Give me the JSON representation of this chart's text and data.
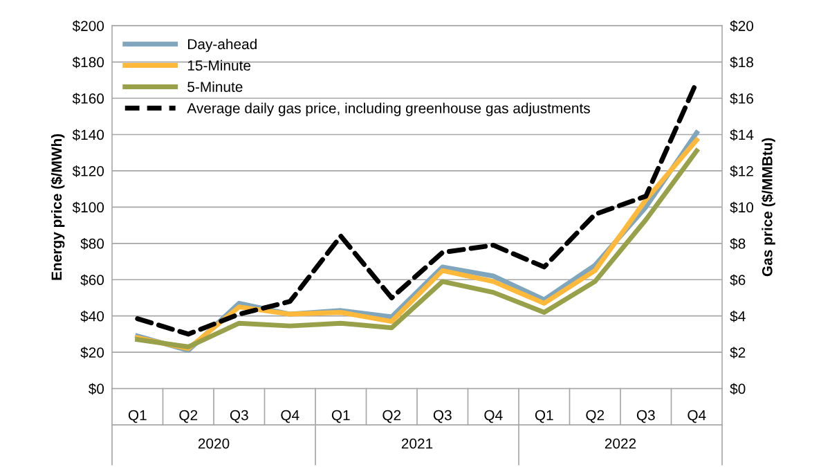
{
  "chart_data": {
    "type": "line",
    "xlabel": null,
    "ylabel": "Energy price ($/MWh)",
    "y2label": "Gas price ($/MMBtu)",
    "categories": [
      "Q1",
      "Q2",
      "Q3",
      "Q4",
      "Q1",
      "Q2",
      "Q3",
      "Q4",
      "Q1",
      "Q2",
      "Q3",
      "Q4"
    ],
    "annotations": [
      "2020",
      "2021",
      "2022"
    ],
    "series": [
      {
        "name": "Day-ahead",
        "color": "#7fa6bc",
        "values": [
          29,
          21,
          47,
          41,
          43,
          39.5,
          67,
          62,
          49,
          68,
          100,
          141
        ]
      },
      {
        "name": "15-Minute",
        "color": "#ffb93a",
        "values": [
          28,
          22,
          45,
          41,
          42,
          37,
          65,
          59,
          47,
          65,
          104,
          137
        ]
      },
      {
        "name": "5-Minute",
        "color": "#99a04a",
        "values": [
          27,
          23,
          36,
          34.5,
          36,
          33.5,
          59,
          53,
          42,
          59,
          93,
          131
        ]
      },
      {
        "name": "Average daily gas price, including greenhouse gas adjustments",
        "color": "#000000",
        "axis": "y2",
        "line_style": "dashed",
        "values": [
          3.85,
          3.0,
          4.1,
          4.8,
          8.4,
          5.0,
          7.5,
          7.9,
          6.7,
          9.6,
          10.6,
          16.9
        ]
      }
    ],
    "ylim": [
      0,
      200
    ],
    "yticks": [
      {
        "value": 0,
        "label": "$0"
      },
      {
        "value": 20,
        "label": "$20"
      },
      {
        "value": 40,
        "label": "$40"
      },
      {
        "value": 60,
        "label": "$60"
      },
      {
        "value": 80,
        "label": "$80"
      },
      {
        "value": 100,
        "label": "$100"
      },
      {
        "value": 120,
        "label": "$120"
      },
      {
        "value": 140,
        "label": "$140"
      },
      {
        "value": 160,
        "label": "$160"
      },
      {
        "value": 180,
        "label": "$180"
      },
      {
        "value": 200,
        "label": "$200"
      }
    ],
    "y2lim": [
      0,
      20
    ],
    "y2ticks": [
      {
        "value": 0,
        "label": "$0"
      },
      {
        "value": 2,
        "label": "$2"
      },
      {
        "value": 4,
        "label": "$4"
      },
      {
        "value": 6,
        "label": "$6"
      },
      {
        "value": 8,
        "label": "$8"
      },
      {
        "value": 10,
        "label": "$10"
      },
      {
        "value": 12,
        "label": "$12"
      },
      {
        "value": 14,
        "label": "$14"
      },
      {
        "value": 16,
        "label": "$16"
      },
      {
        "value": 18,
        "label": "$18"
      },
      {
        "value": 20,
        "label": "$20"
      }
    ],
    "grid": "y",
    "legend": "top left"
  }
}
